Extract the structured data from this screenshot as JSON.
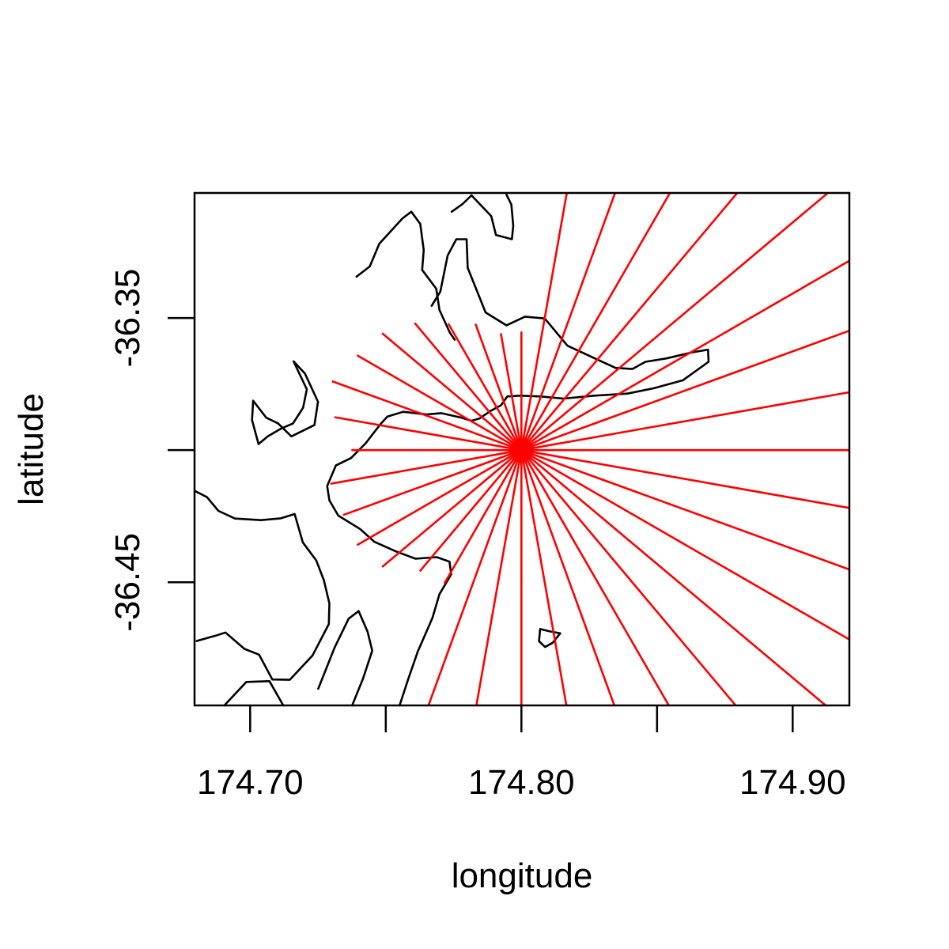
{
  "chart_data": {
    "type": "line",
    "xlabel": "longitude",
    "ylabel": "latitude",
    "xlim": [
      174.6795,
      174.9209
    ],
    "ylim": [
      -36.4966,
      -36.3027
    ],
    "x_ticks": [
      {
        "value": 174.7,
        "label": "174.70"
      },
      {
        "value": 174.75,
        "label": ""
      },
      {
        "value": 174.8,
        "label": "174.80"
      },
      {
        "value": 174.85,
        "label": ""
      },
      {
        "value": 174.9,
        "label": "174.90"
      }
    ],
    "y_ticks": [
      {
        "value": -36.35,
        "label": "-36.35"
      },
      {
        "value": -36.4,
        "label": ""
      },
      {
        "value": -36.45,
        "label": "-36.45"
      }
    ],
    "grid": false,
    "colors": {
      "coastline": "#000000",
      "fetch_lines": "#ff0000"
    },
    "origin": [
      174.8,
      -36.4
    ],
    "coastlines": [
      {
        "name": "northern peninsula",
        "points": [
          [
            174.7392,
            -36.3344
          ],
          [
            174.7441,
            -36.3305
          ],
          [
            174.7476,
            -36.3219
          ],
          [
            174.7561,
            -36.3124
          ],
          [
            174.7594,
            -36.3098
          ],
          [
            174.7627,
            -36.3144
          ],
          [
            174.764,
            -36.3243
          ],
          [
            174.7634,
            -36.3318
          ],
          [
            174.7686,
            -36.3389
          ],
          [
            174.7698,
            -36.347
          ],
          [
            174.7736,
            -36.3555
          ],
          [
            174.7754,
            -36.3582
          ]
        ]
      },
      {
        "name": "northern peninsula east",
        "points": [
          [
            174.7743,
            -36.3098
          ],
          [
            174.7783,
            -36.3069
          ],
          [
            174.7816,
            -36.3036
          ],
          [
            174.7889,
            -36.3115
          ],
          [
            174.7906,
            -36.3186
          ],
          [
            174.7965,
            -36.3202
          ],
          [
            174.797,
            -36.3151
          ],
          [
            174.7963,
            -36.3071
          ],
          [
            174.7945,
            -36.3033
          ]
        ]
      },
      {
        "name": "peninsula inner shore",
        "points": [
          [
            174.7669,
            -36.3454
          ],
          [
            174.7701,
            -36.34
          ],
          [
            174.7728,
            -36.3264
          ],
          [
            174.776,
            -36.3202
          ],
          [
            174.7798,
            -36.3202
          ],
          [
            174.7802,
            -36.331
          ],
          [
            174.7868,
            -36.3479
          ],
          [
            174.7945,
            -36.3528
          ],
          [
            174.8013,
            -36.3495
          ],
          [
            174.8086,
            -36.3502
          ],
          [
            174.817,
            -36.3605
          ],
          [
            174.8347,
            -36.3689
          ],
          [
            174.8409,
            -36.3693
          ],
          [
            174.8457,
            -36.3666
          ],
          [
            174.8535,
            -36.3653
          ],
          [
            174.863,
            -36.363
          ],
          [
            174.8688,
            -36.362
          ],
          [
            174.869,
            -36.3666
          ],
          [
            174.8595,
            -36.3736
          ],
          [
            174.8487,
            -36.3766
          ],
          [
            174.8391,
            -36.3786
          ],
          [
            174.8269,
            -36.3794
          ],
          [
            174.8155,
            -36.3805
          ],
          [
            174.807,
            -36.3797
          ],
          [
            174.7996,
            -36.3794
          ],
          [
            174.7948,
            -36.3797
          ],
          [
            174.7925,
            -36.383
          ],
          [
            174.7886,
            -36.3852
          ],
          [
            174.7846,
            -36.388
          ],
          [
            174.7815,
            -36.3889
          ],
          [
            174.7779,
            -36.3877
          ],
          [
            174.7704,
            -36.386
          ],
          [
            174.7651,
            -36.3865
          ],
          [
            174.7564,
            -36.3855
          ],
          [
            174.7506,
            -36.3873
          ],
          [
            174.748,
            -36.3902
          ],
          [
            174.7426,
            -36.3974
          ],
          [
            174.7372,
            -36.403
          ],
          [
            174.7316,
            -36.4058
          ],
          [
            174.7284,
            -36.4136
          ],
          [
            174.7292,
            -36.419
          ],
          [
            174.7325,
            -36.4248
          ],
          [
            174.7405,
            -36.4298
          ],
          [
            174.7458,
            -36.4347
          ],
          [
            174.7537,
            -36.4383
          ],
          [
            174.761,
            -36.4411
          ],
          [
            174.7688,
            -36.4405
          ],
          [
            174.7735,
            -36.4422
          ],
          [
            174.7741,
            -36.447
          ],
          [
            174.7698,
            -36.4545
          ],
          [
            174.7672,
            -36.4635
          ],
          [
            174.7618,
            -36.4762
          ],
          [
            174.7582,
            -36.4869
          ],
          [
            174.7551,
            -36.4966
          ]
        ]
      },
      {
        "name": "western inlets",
        "points": [
          [
            174.7103,
            -36.3899
          ],
          [
            174.7152,
            -36.3948
          ],
          [
            174.7237,
            -36.3905
          ],
          [
            174.725,
            -36.3817
          ],
          [
            174.7202,
            -36.371
          ],
          [
            174.716,
            -36.3664
          ],
          [
            174.7209,
            -36.377
          ],
          [
            174.7195,
            -36.384
          ],
          [
            174.7158,
            -36.3899
          ],
          [
            174.7113,
            -36.3919
          ],
          [
            174.7065,
            -36.3948
          ],
          [
            174.7031,
            -36.3977
          ],
          [
            174.7007,
            -36.3886
          ],
          [
            174.7011,
            -36.3813
          ],
          [
            174.7059,
            -36.3877
          ],
          [
            174.7103,
            -36.3899
          ]
        ]
      },
      {
        "name": "southwest shore",
        "points": [
          [
            174.6799,
            -36.4156
          ],
          [
            174.6841,
            -36.4178
          ],
          [
            174.6883,
            -36.423
          ],
          [
            174.6944,
            -36.4259
          ],
          [
            174.704,
            -36.4265
          ],
          [
            174.7113,
            -36.4258
          ],
          [
            174.7164,
            -36.4242
          ],
          [
            174.7194,
            -36.4349
          ],
          [
            174.7244,
            -36.4418
          ],
          [
            174.7272,
            -36.4493
          ],
          [
            174.7292,
            -36.458
          ],
          [
            174.729,
            -36.4658
          ],
          [
            174.723,
            -36.4777
          ],
          [
            174.7146,
            -36.4869
          ],
          [
            174.7082,
            -36.4868
          ],
          [
            174.7033,
            -36.4774
          ],
          [
            174.6979,
            -36.4752
          ],
          [
            174.6909,
            -36.469
          ],
          [
            174.6873,
            -36.4702
          ],
          [
            174.6803,
            -36.4722
          ]
        ]
      },
      {
        "name": "southwest inner",
        "points": [
          [
            174.7251,
            -36.4903
          ],
          [
            174.7311,
            -36.4748
          ],
          [
            174.7363,
            -36.4638
          ],
          [
            174.74,
            -36.4609
          ],
          [
            174.7433,
            -36.4687
          ],
          [
            174.745,
            -36.4759
          ],
          [
            174.7416,
            -36.4865
          ],
          [
            174.7376,
            -36.4966
          ]
        ]
      },
      {
        "name": "south bay lobe",
        "points": [
          [
            174.6905,
            -36.4966
          ],
          [
            174.6986,
            -36.4877
          ],
          [
            174.7071,
            -36.4874
          ],
          [
            174.7122,
            -36.4966
          ]
        ]
      },
      {
        "name": "small island",
        "points": [
          [
            174.8069,
            -36.4677
          ],
          [
            174.8105,
            -36.4686
          ],
          [
            174.8143,
            -36.4693
          ],
          [
            174.8115,
            -36.4729
          ],
          [
            174.8087,
            -36.4745
          ],
          [
            174.8065,
            -36.4723
          ],
          [
            174.8069,
            -36.4677
          ]
        ]
      }
    ]
  }
}
